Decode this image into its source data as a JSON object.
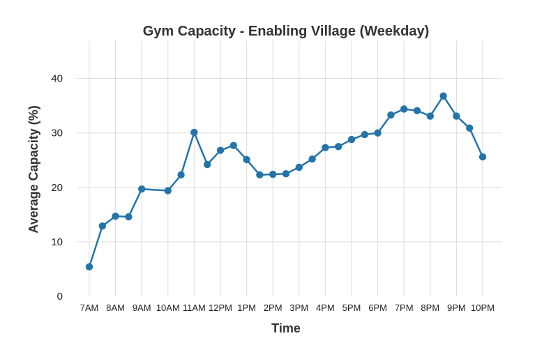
{
  "chart_data": {
    "type": "line",
    "title": "Gym Capacity - Enabling Village (Weekday)",
    "xlabel": "Time",
    "ylabel": "Average Capacity (%)",
    "xlim": [
      7,
      22
    ],
    "ylim": [
      0,
      47
    ],
    "x_tick_hours": [
      7,
      8,
      9,
      10,
      11,
      12,
      13,
      14,
      15,
      16,
      17,
      18,
      19,
      20,
      21,
      22
    ],
    "x_tick_labels": [
      "7AM",
      "8AM",
      "9AM",
      "10AM",
      "11AM",
      "12PM",
      "1PM",
      "2PM",
      "3PM",
      "4PM",
      "5PM",
      "6PM",
      "7PM",
      "8PM",
      "9PM",
      "10PM"
    ],
    "y_ticks": [
      0,
      10,
      20,
      30,
      40
    ],
    "grid": true,
    "color": "#2474aa",
    "points": [
      {
        "x": 7.0,
        "y": 5.4
      },
      {
        "x": 7.5,
        "y": 12.9
      },
      {
        "x": 8.0,
        "y": 14.7
      },
      {
        "x": 8.5,
        "y": 14.6
      },
      {
        "x": 9.0,
        "y": 19.7
      },
      {
        "x": 10.0,
        "y": 19.4
      },
      {
        "x": 10.5,
        "y": 22.3
      },
      {
        "x": 11.0,
        "y": 30.1
      },
      {
        "x": 11.5,
        "y": 24.2
      },
      {
        "x": 12.0,
        "y": 26.8
      },
      {
        "x": 12.5,
        "y": 27.7
      },
      {
        "x": 13.0,
        "y": 25.1
      },
      {
        "x": 13.5,
        "y": 22.3
      },
      {
        "x": 14.0,
        "y": 22.4
      },
      {
        "x": 14.5,
        "y": 22.5
      },
      {
        "x": 15.0,
        "y": 23.7
      },
      {
        "x": 15.5,
        "y": 25.2
      },
      {
        "x": 16.0,
        "y": 27.3
      },
      {
        "x": 16.5,
        "y": 27.5
      },
      {
        "x": 17.0,
        "y": 28.8
      },
      {
        "x": 17.5,
        "y": 29.7
      },
      {
        "x": 18.0,
        "y": 30.0
      },
      {
        "x": 18.5,
        "y": 33.3
      },
      {
        "x": 19.0,
        "y": 34.4
      },
      {
        "x": 19.5,
        "y": 34.1
      },
      {
        "x": 20.0,
        "y": 33.1
      },
      {
        "x": 20.5,
        "y": 36.8
      },
      {
        "x": 21.0,
        "y": 33.1
      },
      {
        "x": 21.5,
        "y": 30.9
      },
      {
        "x": 22.0,
        "y": 25.6
      }
    ]
  }
}
